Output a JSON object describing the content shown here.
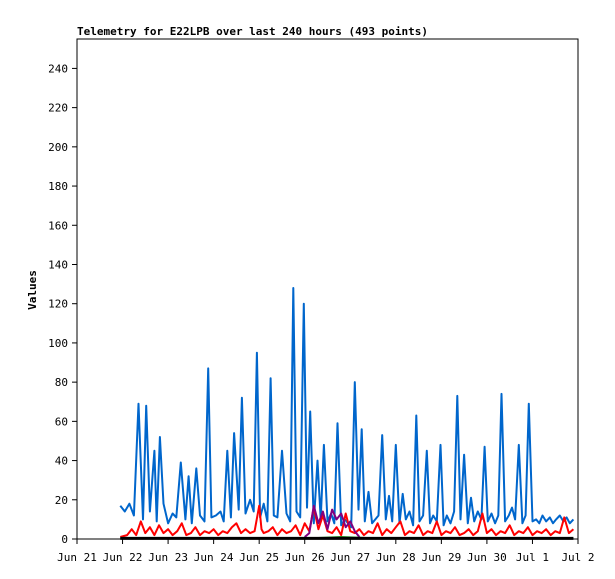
{
  "chart_data": {
    "type": "line",
    "title": "Telemetry for E22LPB over last 240 hours (493 points)",
    "ylabel": "Values",
    "xlabel": "",
    "ylim": [
      0,
      255
    ],
    "yticks": [
      0,
      20,
      40,
      60,
      80,
      100,
      120,
      140,
      160,
      180,
      200,
      220,
      240
    ],
    "xlim": [
      "Jun 21",
      "Jul 2"
    ],
    "xticks": [
      "Jun 21",
      "Jun 22",
      "Jun 23",
      "Jun 24",
      "Jun 25",
      "Jun 26",
      "Jun 27",
      "Jun 28",
      "Jun 29",
      "Jun 30",
      "Jul 1",
      "Jul 2"
    ],
    "grid": false,
    "legend": "none",
    "series": [
      {
        "color": "#0066cc",
        "x": [
          0.95,
          1.05,
          1.15,
          1.25,
          1.35,
          1.45,
          1.52,
          1.6,
          1.7,
          1.75,
          1.82,
          1.9,
          2.0,
          2.1,
          2.18,
          2.28,
          2.38,
          2.45,
          2.52,
          2.62,
          2.7,
          2.8,
          2.88,
          2.95,
          3.05,
          3.15,
          3.22,
          3.3,
          3.38,
          3.45,
          3.55,
          3.62,
          3.7,
          3.8,
          3.88,
          3.95,
          4.02,
          4.1,
          4.18,
          4.25,
          4.32,
          4.4,
          4.5,
          4.6,
          4.68,
          4.75,
          4.82,
          4.9,
          4.98,
          5.05,
          5.12,
          5.2,
          5.28,
          5.35,
          5.42,
          5.5,
          5.58,
          5.65,
          5.72,
          5.8,
          5.88,
          5.95,
          6.02,
          6.1,
          6.18,
          6.25,
          6.32,
          6.4,
          6.48,
          6.55,
          6.62,
          6.7,
          6.78,
          6.85,
          6.92,
          7.0,
          7.08,
          7.15,
          7.22,
          7.3,
          7.38,
          7.45,
          7.52,
          7.6,
          7.68,
          7.75,
          7.82,
          7.9,
          7.98,
          8.05,
          8.12,
          8.2,
          8.28,
          8.35,
          8.42,
          8.5,
          8.58,
          8.65,
          8.72,
          8.8,
          8.88,
          8.95,
          9.02,
          9.1,
          9.18,
          9.25,
          9.32,
          9.4,
          9.48,
          9.55,
          9.62,
          9.7,
          9.78,
          9.85,
          9.92,
          10.0,
          10.08,
          10.15,
          10.22,
          10.3,
          10.38,
          10.45,
          10.52,
          10.6,
          10.68,
          10.75,
          10.82,
          10.9
        ],
        "y": [
          17,
          14,
          18,
          12,
          69,
          10,
          68,
          14,
          45,
          9,
          52,
          18,
          8,
          13,
          11,
          39,
          10,
          32,
          8,
          36,
          12,
          9,
          87,
          11,
          12,
          14,
          9,
          45,
          11,
          54,
          15,
          72,
          13,
          20,
          14,
          95,
          11,
          18,
          9,
          82,
          12,
          11,
          45,
          13,
          9,
          128,
          14,
          11,
          120,
          16,
          65,
          8,
          40,
          10,
          48,
          9,
          13,
          8,
          59,
          7,
          10,
          8,
          6,
          80,
          15,
          56,
          9,
          24,
          8,
          10,
          12,
          53,
          10,
          22,
          9,
          48,
          8,
          23,
          10,
          14,
          7,
          63,
          9,
          12,
          45,
          8,
          12,
          9,
          48,
          7,
          12,
          8,
          14,
          73,
          10,
          43,
          8,
          21,
          9,
          14,
          10,
          47,
          9,
          13,
          8,
          12,
          74,
          9,
          12,
          16,
          10,
          48,
          8,
          12,
          69,
          9,
          10,
          8,
          12,
          9,
          11,
          8,
          10,
          12,
          9,
          11,
          8,
          10
        ],
        "width": 2
      },
      {
        "color": "#ff0000",
        "x": [
          0.95,
          1.1,
          1.2,
          1.3,
          1.4,
          1.5,
          1.6,
          1.7,
          1.8,
          1.9,
          2.0,
          2.1,
          2.2,
          2.3,
          2.4,
          2.5,
          2.6,
          2.7,
          2.8,
          2.9,
          3.0,
          3.1,
          3.2,
          3.3,
          3.4,
          3.5,
          3.6,
          3.7,
          3.8,
          3.9,
          4.0,
          4.05,
          4.1,
          4.2,
          4.3,
          4.4,
          4.5,
          4.6,
          4.7,
          4.8,
          4.9,
          5.0,
          5.1,
          5.2,
          5.3,
          5.4,
          5.5,
          5.6,
          5.7,
          5.8,
          5.9,
          6.0,
          6.1,
          6.2,
          6.3,
          6.4,
          6.5,
          6.6,
          6.7,
          6.8,
          6.9,
          7.0,
          7.1,
          7.2,
          7.3,
          7.4,
          7.5,
          7.6,
          7.7,
          7.8,
          7.9,
          8.0,
          8.1,
          8.2,
          8.3,
          8.4,
          8.5,
          8.6,
          8.7,
          8.8,
          8.9,
          9.0,
          9.1,
          9.2,
          9.3,
          9.4,
          9.5,
          9.6,
          9.7,
          9.8,
          9.9,
          10.0,
          10.1,
          10.2,
          10.3,
          10.4,
          10.5,
          10.6,
          10.7,
          10.8,
          10.9
        ],
        "y": [
          1,
          2,
          5,
          2,
          9,
          3,
          6,
          2,
          7,
          3,
          5,
          2,
          4,
          8,
          2,
          3,
          6,
          2,
          4,
          3,
          5,
          2,
          4,
          3,
          6,
          8,
          3,
          5,
          3,
          4,
          17,
          5,
          3,
          4,
          6,
          2,
          5,
          3,
          4,
          7,
          2,
          8,
          4,
          16,
          5,
          12,
          4,
          3,
          6,
          2,
          13,
          4,
          3,
          5,
          2,
          4,
          3,
          8,
          2,
          5,
          3,
          6,
          9,
          2,
          4,
          3,
          7,
          2,
          4,
          3,
          9,
          2,
          4,
          3,
          6,
          2,
          3,
          5,
          2,
          4,
          13,
          3,
          5,
          2,
          4,
          3,
          7,
          2,
          4,
          3,
          6,
          2,
          4,
          3,
          5,
          2,
          4,
          3,
          11,
          3,
          5
        ],
        "width": 2
      },
      {
        "color": "#800080",
        "x": [
          5.0,
          5.1,
          5.2,
          5.3,
          5.4,
          5.5,
          5.6,
          5.7,
          5.8,
          5.9,
          6.0,
          6.1,
          6.2
        ],
        "y": [
          1,
          3,
          17,
          8,
          14,
          5,
          15,
          10,
          13,
          6,
          9,
          4,
          1
        ],
        "width": 2
      },
      {
        "color": "#008000",
        "x": [
          0.95,
          2.0,
          3.0,
          4.0,
          5.0,
          5.8,
          6.5,
          7.0,
          8.0,
          9.0,
          10.0,
          10.9
        ],
        "y": [
          0.5,
          0.6,
          0.4,
          0.7,
          0.5,
          1.2,
          0.6,
          0.5,
          0.6,
          0.5,
          0.6,
          0.5
        ],
        "width": 1
      },
      {
        "color": "#000000",
        "x": [
          0.95,
          10.9
        ],
        "y": [
          0.3,
          0.3
        ],
        "width": 3
      }
    ]
  }
}
